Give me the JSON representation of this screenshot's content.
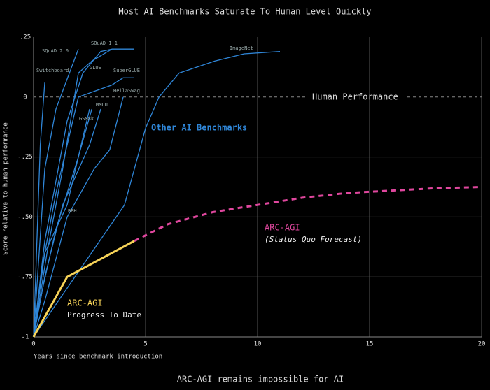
{
  "chart_data": {
    "type": "line",
    "title": "Most AI Benchmarks Saturate To Human Level Quickly",
    "x_label": "Years since benchmark introduction",
    "y_label": "Score relative to human performance",
    "caption": "ARC-AGI remains impossible for AI",
    "xlim": [
      0,
      20
    ],
    "ylim": [
      -1,
      0.25
    ],
    "xticks": [
      0,
      5,
      10,
      15,
      20
    ],
    "yticks": [
      {
        "value": 0.25,
        "label": ".25"
      },
      0,
      {
        "value": -0.25,
        "label": "-.25"
      },
      {
        "value": -0.5,
        "label": "-.50"
      },
      {
        "value": -0.75,
        "label": "-.75"
      },
      -1
    ],
    "grid": true,
    "reference_line": {
      "value": 0,
      "label": "Human Performance"
    },
    "annotation": "Other AI Benchmarks",
    "series": [
      {
        "name": "ImageNet",
        "color": "#2f86d8",
        "x": [
          0,
          4.06,
          5,
          5.6,
          6.5,
          8.1,
          9.4,
          11
        ],
        "values": [
          -1,
          -0.45,
          -0.13,
          0,
          0.1,
          0.15,
          0.18,
          0.19
        ]
      },
      {
        "name": "SQuAD 1.1",
        "color": "#2f86d8",
        "x": [
          0,
          0.5,
          1.5,
          2.2,
          3,
          3.5,
          4.5
        ],
        "values": [
          -1,
          -0.6,
          -0.1,
          0.1,
          0.19,
          0.2,
          0.2
        ]
      },
      {
        "name": "SQuAD 2.0",
        "color": "#2f86d8",
        "x": [
          0,
          0.5,
          1,
          2
        ],
        "values": [
          -1,
          -0.3,
          -0.05,
          0.2
        ]
      },
      {
        "name": "Switchboard",
        "color": "#2f86d8",
        "x": [
          0,
          0.3,
          0.5
        ],
        "values": [
          -1,
          -0.2,
          0.06
        ]
      },
      {
        "name": "GLUE",
        "color": "#2f86d8",
        "x": [
          0,
          0.6,
          1.3,
          2,
          2.6,
          3.5
        ],
        "values": [
          -1,
          -0.65,
          -0.3,
          0.1,
          0.15,
          0.2
        ]
      },
      {
        "name": "SuperGLUE",
        "color": "#2f86d8",
        "x": [
          0,
          0.4,
          1,
          2,
          3.5,
          4,
          4.5
        ],
        "values": [
          -1,
          -0.7,
          -0.4,
          0,
          0.05,
          0.08,
          0.08
        ]
      },
      {
        "name": "HellaSwag",
        "color": "#2f86d8",
        "x": [
          0,
          0.5,
          1.5,
          2.7,
          3.4,
          4
        ],
        "values": [
          -1,
          -0.85,
          -0.5,
          -0.3,
          -0.22,
          0
        ]
      },
      {
        "name": "MMLU",
        "color": "#2f86d8",
        "x": [
          0,
          0.5,
          1.3,
          2.5,
          3
        ],
        "values": [
          -1,
          -0.75,
          -0.45,
          -0.2,
          -0.05
        ]
      },
      {
        "name": "GSM8k",
        "color": "#2f86d8",
        "x": [
          0,
          0.4,
          1,
          2,
          2.6
        ],
        "values": [
          -1,
          -0.8,
          -0.55,
          -0.25,
          -0.05
        ]
      },
      {
        "name": "BBH",
        "color": "#2f86d8",
        "x": [
          0,
          0.5,
          1.5,
          2.5
        ],
        "values": [
          -1,
          -0.65,
          -0.45,
          -0.05
        ]
      },
      {
        "name": "ARC-AGI",
        "note": "Progress To Date",
        "color": "#f7d358",
        "x": [
          0,
          1.5,
          4.5
        ],
        "values": [
          -1,
          -0.75,
          -0.6
        ]
      },
      {
        "name": "ARC-AGI",
        "note": "(Status Quo Forecast)",
        "color": "#e0479e",
        "dashed": true,
        "x": [
          4.5,
          6,
          8,
          10,
          12,
          14,
          16,
          18,
          20
        ],
        "values": [
          -0.6,
          -0.53,
          -0.48,
          -0.45,
          -0.42,
          -0.4,
          -0.39,
          -0.38,
          -0.375
        ]
      }
    ]
  }
}
